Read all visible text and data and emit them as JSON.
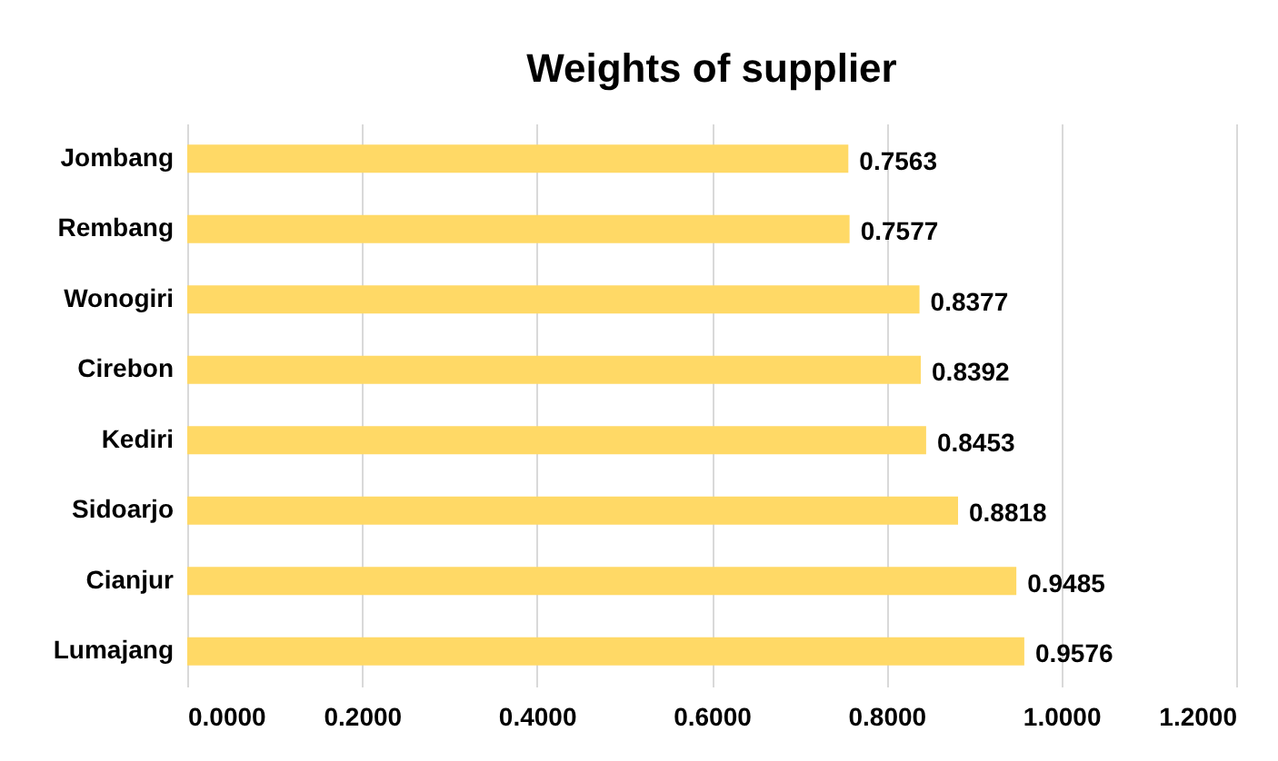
{
  "chart_data": {
    "type": "bar",
    "orientation": "horizontal",
    "title": "Weights of supplier",
    "categories": [
      "Jombang",
      "Rembang",
      "Wonogiri",
      "Cirebon",
      "Kediri",
      "Sidoarjo",
      "Cianjur",
      "Lumajang"
    ],
    "values": [
      0.7563,
      0.7577,
      0.8377,
      0.8392,
      0.8453,
      0.8818,
      0.9485,
      0.9576
    ],
    "color": "#ffd966",
    "xlim": [
      0,
      1.2
    ],
    "xticks": [
      {
        "value": 0,
        "label": "0.0000"
      },
      {
        "value": 0.2,
        "label": "0.2000"
      },
      {
        "value": 0.4,
        "label": "0.4000"
      },
      {
        "value": 0.6,
        "label": "0.6000"
      },
      {
        "value": 0.8,
        "label": "0.8000"
      },
      {
        "value": 1,
        "label": "1.0000"
      },
      {
        "value": 1.2,
        "label": "1.2000"
      }
    ],
    "grid": true,
    "data_labels": true
  }
}
